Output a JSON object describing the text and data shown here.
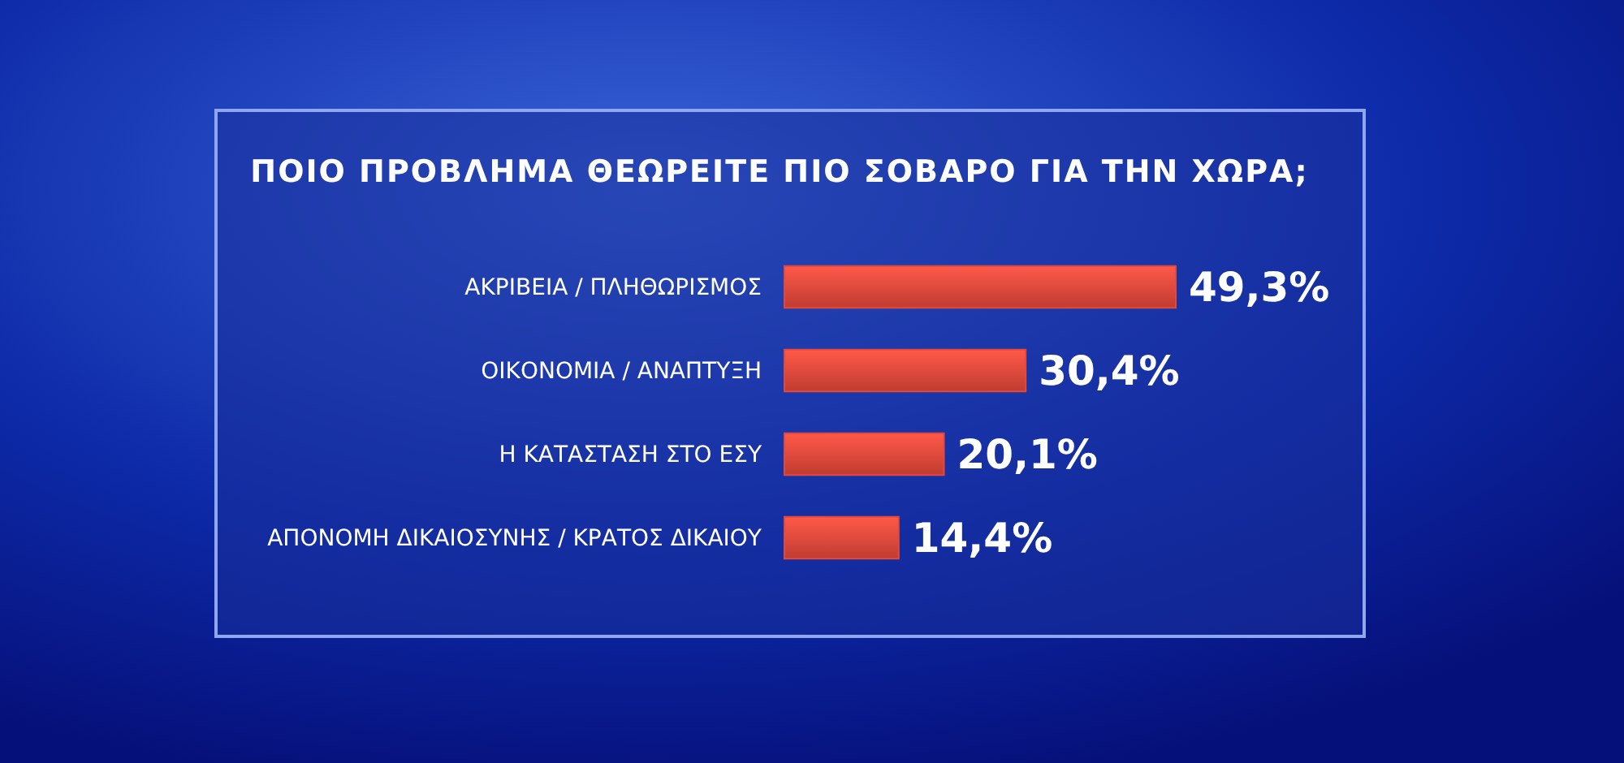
{
  "chart_data": {
    "type": "bar",
    "orientation": "horizontal",
    "title": "ΠΟΙΟ ΠΡΟΒΛΗΜΑ ΘΕΩΡΕΙΤΕ ΠΙΟ ΣΟΒΑΡΟ ΓΙΑ ΤΗΝ ΧΩΡΑ;",
    "categories": [
      "ΑΚΡΙΒΕΙΑ / ΠΛΗΘΩΡΙΣΜΟΣ",
      "ΟΙΚΟΝΟΜΙΑ / ΑΝΑΠΤΥΞΗ",
      "Η ΚΑΤΑΣΤΑΣΗ ΣΤΟ ΕΣΥ",
      "ΑΠΟΝΟΜΗ ΔΙΚΑΙΟΣΥΝΗΣ / ΚΡΑΤΟΣ ΔΙΚΑΙΟΥ"
    ],
    "values": [
      49.3,
      30.4,
      20.1,
      14.4
    ],
    "value_labels": [
      "49,3%",
      "30,4%",
      "20,1%",
      "14,4%"
    ],
    "color": "#e5483a"
  }
}
